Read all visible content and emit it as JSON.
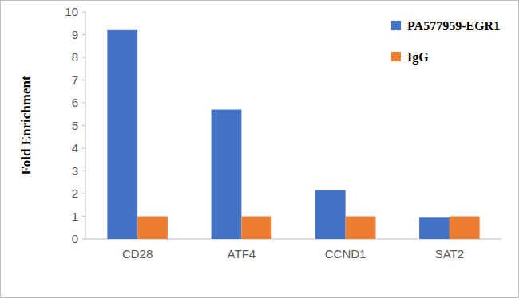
{
  "chart_data": {
    "type": "bar",
    "y_label": "Fold Enrichment",
    "categories": [
      "CD28",
      "ATF4",
      "CCND1",
      "SAT2"
    ],
    "series": [
      {
        "name": "PA577959-EGR1",
        "color": "#4472c4",
        "values": [
          9.2,
          5.7,
          2.15,
          0.97
        ]
      },
      {
        "name": "IgG",
        "color": "#ed7d31",
        "values": [
          1,
          1,
          1,
          1
        ]
      }
    ],
    "ylim": [
      0,
      10
    ],
    "yticks": [
      0,
      1,
      2,
      3,
      4,
      5,
      6,
      7,
      8,
      9,
      10
    ],
    "grid": false,
    "legend": "top-right"
  }
}
